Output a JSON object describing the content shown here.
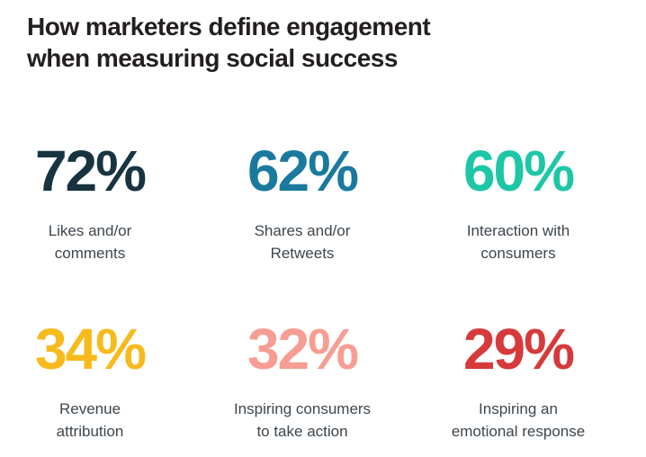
{
  "title": {
    "line1": "How marketers define engagement",
    "line2": "when measuring social success",
    "full": "How marketers define engagement when measuring social success"
  },
  "colors": {
    "background": "#ffffff",
    "title_text": "#231f20",
    "label_text": "#3d464d",
    "stat_navy": "#173440",
    "stat_teal_blue": "#1a7a9e",
    "stat_turquoise": "#1dc7a6",
    "stat_gold": "#f7ba1c",
    "stat_salmon": "#f79d93",
    "stat_red": "#d63a3b"
  },
  "stats": [
    {
      "value": "72%",
      "label": "Likes and/or comments",
      "label_lines": [
        "Likes and/or",
        "comments"
      ],
      "color": "#173440"
    },
    {
      "value": "62%",
      "label": "Shares and/or Retweets",
      "label_lines": [
        "Shares and/or",
        "Retweets"
      ],
      "color": "#1a7a9e"
    },
    {
      "value": "60%",
      "label": "Interaction with consumers",
      "label_lines": [
        "Interaction with",
        "consumers"
      ],
      "color": "#1dc7a6"
    },
    {
      "value": "34%",
      "label": "Revenue attribution",
      "label_lines": [
        "Revenue",
        "attribution"
      ],
      "color": "#f7ba1c"
    },
    {
      "value": "32%",
      "label": "Inspiring consumers to take action",
      "label_lines": [
        "Inspiring consumers",
        "to take action"
      ],
      "color": "#f79d93"
    },
    {
      "value": "29%",
      "label": "Inspiring an emotional response",
      "label_lines": [
        "Inspiring an",
        "emotional response"
      ],
      "color": "#d63a3b"
    }
  ],
  "chart_data": {
    "type": "table",
    "title": "How marketers define engagement when measuring social success",
    "categories": [
      "Likes and/or comments",
      "Shares and/or Retweets",
      "Interaction with consumers",
      "Revenue attribution",
      "Inspiring consumers to take action",
      "Inspiring an emotional response"
    ],
    "values": [
      72,
      62,
      60,
      34,
      32,
      29
    ],
    "unit": "%",
    "layout": "3x2 grid of big-number percentage stats, labels centered below each number",
    "value_colors": [
      "#173440",
      "#1a7a9e",
      "#1dc7a6",
      "#f7ba1c",
      "#f79d93",
      "#d63a3b"
    ]
  }
}
